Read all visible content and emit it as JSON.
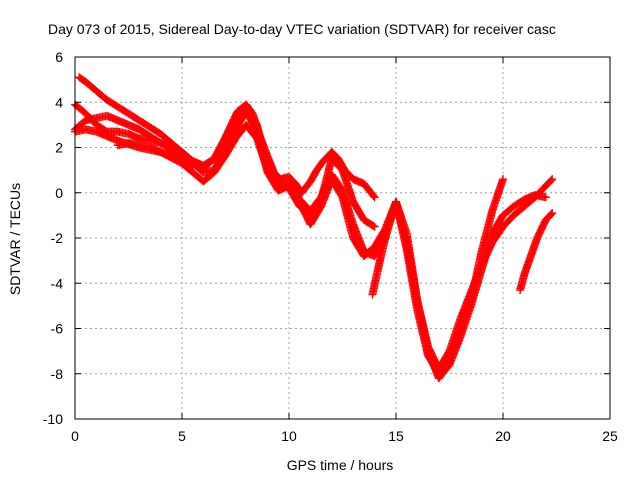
{
  "chart_data": {
    "type": "scatter",
    "title": "Day 073 of 2015, Sidereal Day-to-day VTEC variation (SDTVAR) for receiver casc",
    "xlabel": "GPS time / hours",
    "ylabel": "SDTVAR / TECUs",
    "xlim": [
      0,
      25
    ],
    "ylim": [
      -10,
      6
    ],
    "xticks": [
      0,
      5,
      10,
      15,
      20,
      25
    ],
    "yticks": [
      -10,
      -8,
      -6,
      -4,
      -2,
      0,
      2,
      4,
      6
    ],
    "grid": true,
    "marker": "plus",
    "series_color": "#ff0000",
    "series": [
      {
        "x": [
          0.2,
          0.5,
          1,
          1.5,
          2,
          2.5,
          3,
          3.5,
          4,
          4.5,
          5,
          5.5,
          6,
          6.5,
          7,
          7.3,
          7.6,
          8,
          8.3,
          8.6,
          9,
          9.3,
          9.6,
          10,
          10.3,
          10.6,
          11,
          11.3,
          11.6,
          12,
          12.3,
          12.6,
          13,
          13.5,
          14
        ],
        "y": [
          5.1,
          4.9,
          4.5,
          4.1,
          3.8,
          3.5,
          3.2,
          2.9,
          2.6,
          2.2,
          1.8,
          1.4,
          1.1,
          1.5,
          2.4,
          3.0,
          3.6,
          3.9,
          3.5,
          2.6,
          1.6,
          0.9,
          0.6,
          0.7,
          0.4,
          0.0,
          0.5,
          1.0,
          1.4,
          1.8,
          1.5,
          1.0,
          0.6,
          0.4,
          -0.2
        ]
      },
      {
        "x": [
          0,
          0.5,
          1,
          1.5,
          2,
          2.5,
          3,
          3.5,
          4,
          4.5,
          5,
          5.5,
          6,
          6.5,
          7,
          7.5,
          8,
          8.5,
          9,
          9.5,
          10,
          10.5,
          11,
          11.5,
          12,
          12.5,
          13,
          13.5,
          14
        ],
        "y": [
          3.9,
          3.5,
          3.0,
          2.7,
          2.7,
          2.6,
          2.4,
          2.3,
          2.2,
          2.0,
          1.7,
          1.4,
          1.2,
          1.5,
          2.3,
          3.2,
          3.8,
          3.0,
          1.2,
          0.5,
          0.2,
          -0.6,
          -1.0,
          -0.3,
          1.5,
          1.0,
          -0.4,
          -1.2,
          -1.5
        ]
      },
      {
        "x": [
          0,
          0.5,
          1,
          1.5,
          2,
          2.5,
          3,
          3.5,
          4,
          4.5,
          5,
          5.5,
          6,
          6.5,
          7,
          7.5,
          8,
          8.5,
          9,
          9.5,
          10,
          10.5,
          11,
          11.5,
          12,
          12.5,
          13,
          13.5,
          14,
          14.5,
          15,
          15.5,
          16,
          16.5,
          17,
          17.5,
          18,
          18.5,
          19,
          19.5,
          20
        ],
        "y": [
          2.8,
          3.2,
          3.3,
          3.4,
          3.2,
          3.0,
          2.8,
          2.5,
          2.2,
          1.9,
          1.6,
          1.3,
          0.9,
          1.0,
          1.8,
          2.8,
          3.6,
          2.7,
          0.9,
          0.1,
          0.3,
          -0.4,
          -1.4,
          -0.6,
          0.6,
          -0.2,
          -2.0,
          -2.8,
          -2.4,
          -1.6,
          -0.4,
          -2.5,
          -5.2,
          -7.2,
          -8.0,
          -7.4,
          -6.2,
          -4.8,
          -2.6,
          -0.8,
          0.6
        ]
      },
      {
        "x": [
          0,
          0.5,
          1,
          2,
          3,
          4,
          5,
          6,
          6.5,
          7,
          7.5,
          8,
          8.5,
          9,
          9.5,
          10,
          10.5,
          11,
          11.5,
          12,
          12.5,
          13,
          13.5,
          14,
          14.5,
          15,
          15.5,
          16,
          16.5,
          17,
          17.5,
          18,
          18.5,
          19,
          19.5,
          20,
          20.5,
          21,
          21.5,
          22,
          22.3
        ],
        "y": [
          2.7,
          2.8,
          2.7,
          2.3,
          2.0,
          1.8,
          1.3,
          0.5,
          0.9,
          1.6,
          2.4,
          3.0,
          2.4,
          1.0,
          0.3,
          0.4,
          -0.3,
          -0.8,
          -0.2,
          0.8,
          0.1,
          -1.4,
          -2.6,
          -2.8,
          -2.0,
          -0.4,
          -1.8,
          -4.8,
          -6.8,
          -7.8,
          -7.0,
          -5.6,
          -4.4,
          -3.2,
          -2.2,
          -1.5,
          -1.0,
          -0.6,
          -0.2,
          0.3,
          0.6
        ]
      },
      {
        "x": [
          2,
          2.5,
          3,
          3.5,
          4,
          4.5,
          5,
          5.5
        ],
        "y": [
          2.1,
          2.2,
          2.1,
          2.0,
          1.8,
          1.6,
          1.4,
          1.2
        ]
      },
      {
        "x": [
          13.9,
          14.2,
          14.6,
          15,
          15.5,
          16,
          16.5,
          17,
          17.5,
          18,
          18.5,
          19,
          19.5,
          20,
          20.5,
          21,
          21.5,
          22
        ],
        "y": [
          -4.5,
          -3.2,
          -1.6,
          -0.4,
          -2.2,
          -4.8,
          -7.0,
          -8.2,
          -7.6,
          -6.4,
          -5.0,
          -3.4,
          -1.8,
          -1.0,
          -0.6,
          -0.3,
          -0.1,
          -0.2
        ]
      },
      {
        "x": [
          20.8,
          21,
          21.3,
          21.6,
          22,
          22.3
        ],
        "y": [
          -4.3,
          -3.6,
          -2.8,
          -2.0,
          -1.2,
          -0.9
        ]
      }
    ]
  }
}
